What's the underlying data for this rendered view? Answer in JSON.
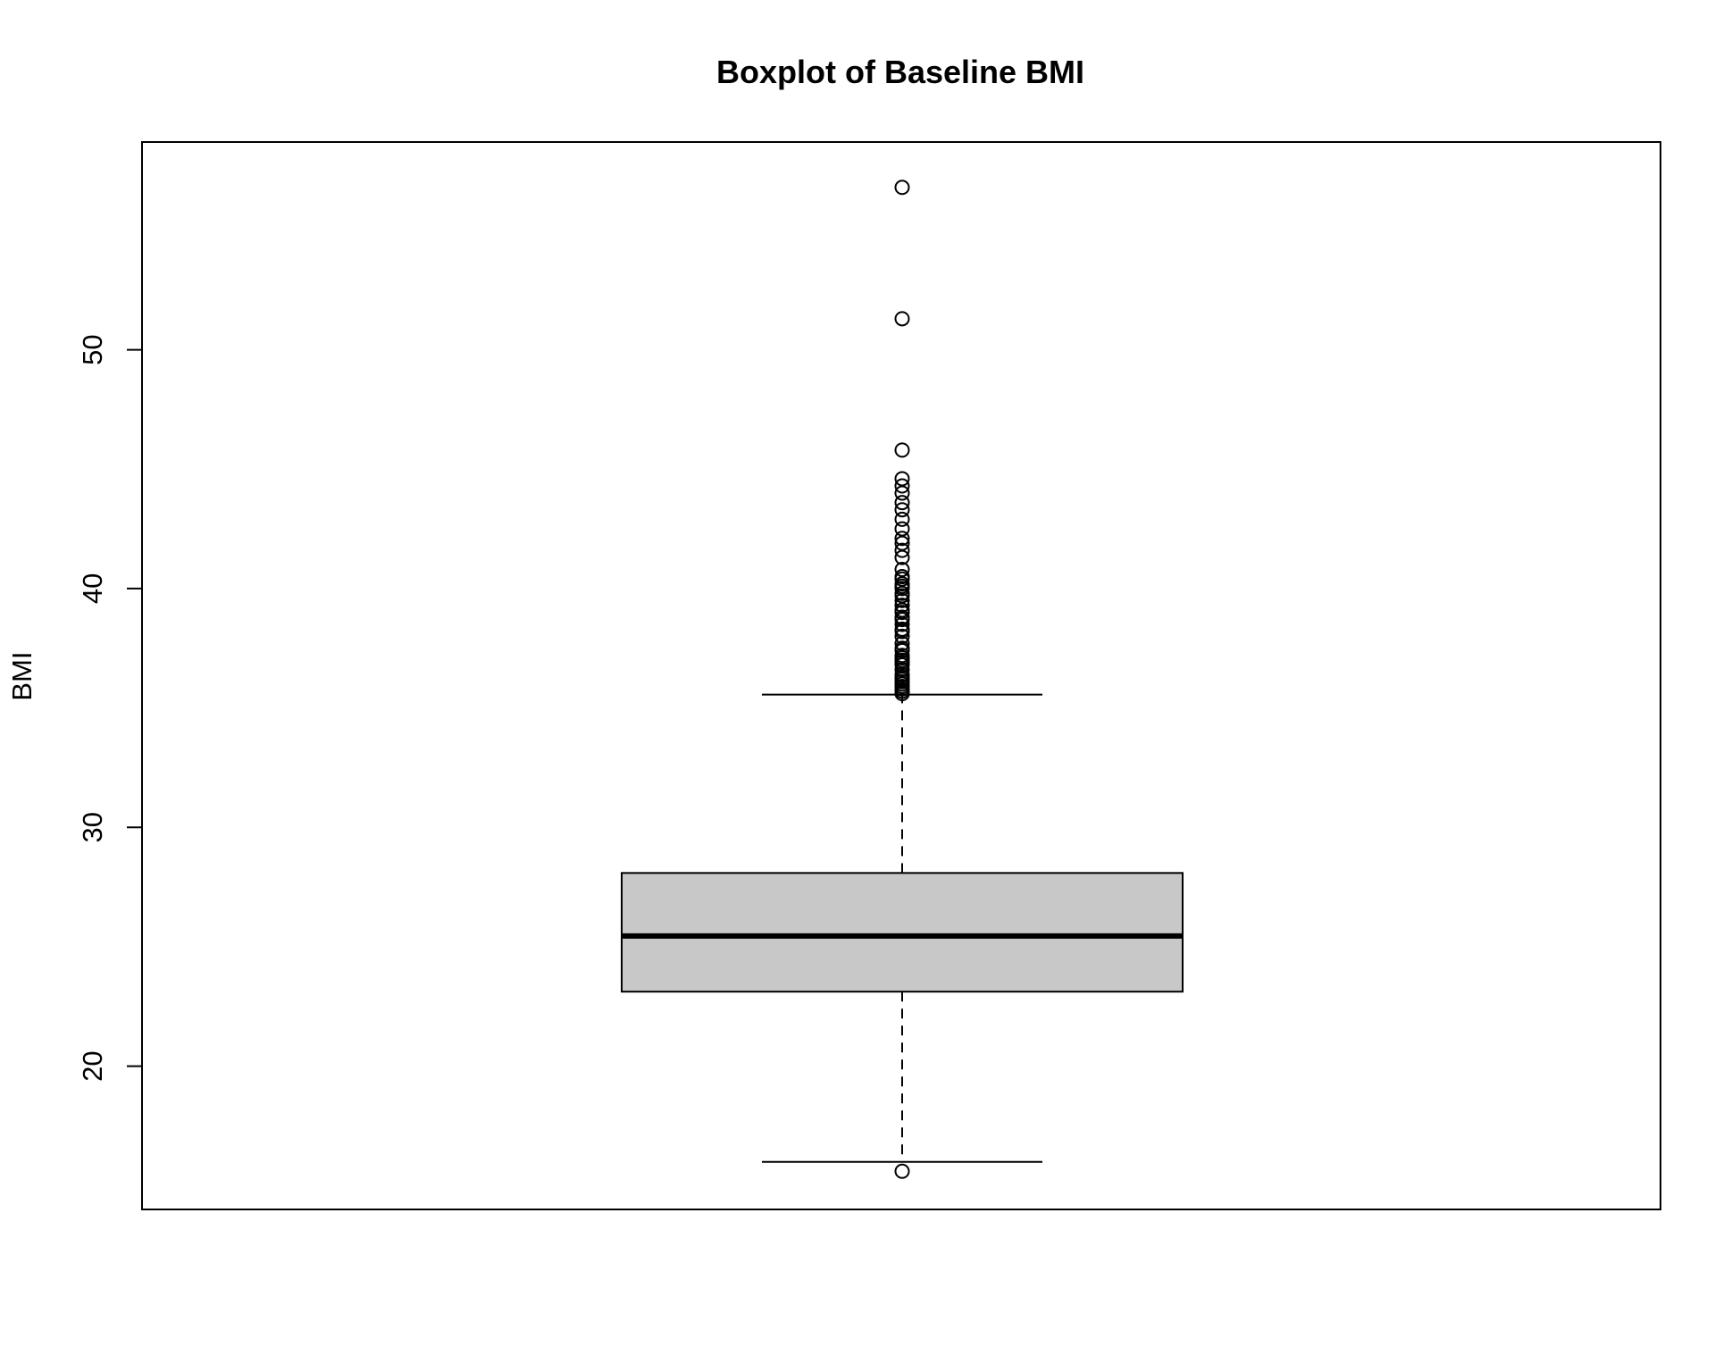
{
  "chart_data": {
    "type": "boxplot",
    "title": "Boxplot of Baseline BMI",
    "xlabel": "",
    "ylabel": "BMI",
    "ylim": [
      14,
      58.7
    ],
    "yticks": [
      20,
      30,
      40,
      50
    ],
    "grid": false,
    "box": {
      "lower_whisker": 15.99,
      "q1": 23.12,
      "median": 25.45,
      "q3": 28.09,
      "upper_whisker": 35.56
    },
    "outliers": [
      15.6,
      35.6,
      35.7,
      35.8,
      35.9,
      36.0,
      36.1,
      36.2,
      36.3,
      36.4,
      36.6,
      36.8,
      36.9,
      37.0,
      37.1,
      37.2,
      37.4,
      37.5,
      37.7,
      38.0,
      38.2,
      38.3,
      38.5,
      38.7,
      38.8,
      39.0,
      39.1,
      39.3,
      39.5,
      39.7,
      39.8,
      40.0,
      40.1,
      40.2,
      40.4,
      40.5,
      40.8,
      41.3,
      41.6,
      41.9,
      42.1,
      42.5,
      42.9,
      43.3,
      43.6,
      44.0,
      44.3,
      44.6,
      45.8,
      51.3,
      56.8
    ],
    "colors": {
      "box_fill": "#c8c8c8",
      "line": "#000000",
      "background": "#ffffff"
    }
  }
}
